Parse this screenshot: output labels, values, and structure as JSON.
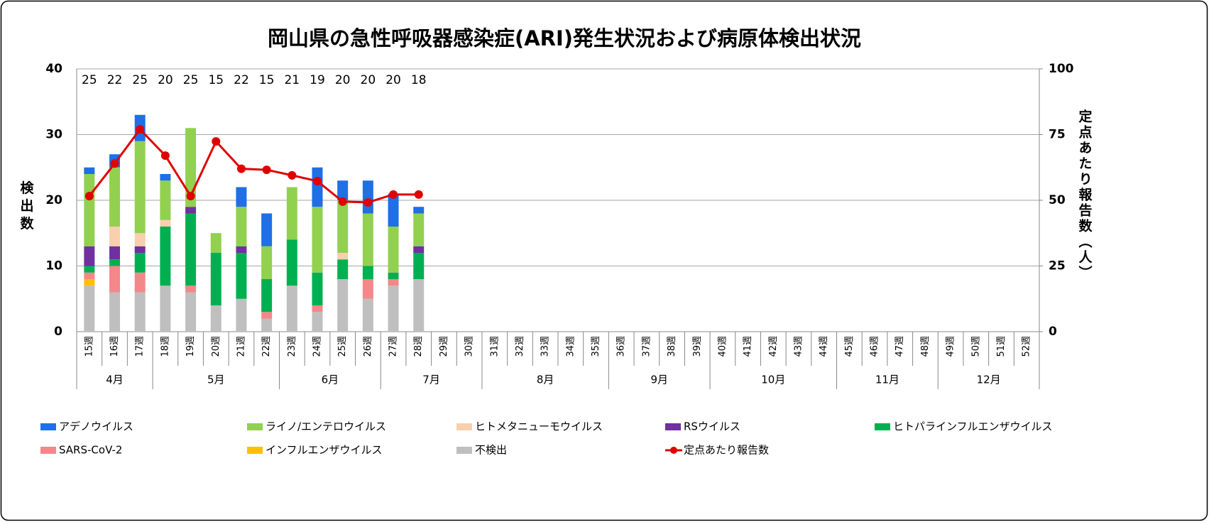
{
  "chart_data": {
    "type": "bar",
    "stacked": true,
    "title": "岡山県の急性呼吸器感染症(ARI)発生状況および病原体検出状況",
    "y_label": "検出数",
    "y2_label": "定点あたり報告数（人）",
    "categories": [
      "15週",
      "16週",
      "17週",
      "18週",
      "19週",
      "20週",
      "21週",
      "22週",
      "23週",
      "24週",
      "25週",
      "26週",
      "27週",
      "28週",
      "29週",
      "30週",
      "31週",
      "32週",
      "33週",
      "34週",
      "35週",
      "36週",
      "37週",
      "38週",
      "39週",
      "40週",
      "41週",
      "42週",
      "43週",
      "44週",
      "45週",
      "46週",
      "47週",
      "48週",
      "49週",
      "50週",
      "51週",
      "52週"
    ],
    "month_groups": [
      {
        "label": "4月",
        "span": 3
      },
      {
        "label": "5月",
        "span": 5
      },
      {
        "label": "6月",
        "span": 4
      },
      {
        "label": "7月",
        "span": 4
      },
      {
        "label": "8月",
        "span": 5
      },
      {
        "label": "9月",
        "span": 4
      },
      {
        "label": "10月",
        "span": 5
      },
      {
        "label": "11月",
        "span": 4
      },
      {
        "label": "12月",
        "span": 4
      }
    ],
    "top_labels": [
      25,
      22,
      25,
      20,
      25,
      15,
      22,
      15,
      21,
      19,
      20,
      20,
      20,
      18
    ],
    "series": [
      {
        "name": "アデノウイルス",
        "color": "#1f6fe6",
        "values": [
          1,
          2,
          4,
          1,
          0,
          0,
          3,
          5,
          0,
          6,
          3,
          5,
          5,
          1,
          null,
          null,
          null,
          null,
          null,
          null,
          null,
          null,
          null,
          null,
          null,
          null,
          null,
          null,
          null,
          null,
          null,
          null,
          null,
          null,
          null,
          null,
          null,
          null
        ]
      },
      {
        "name": "ライノ/エンテロウイルス",
        "color": "#92d050",
        "values": [
          11,
          9,
          14,
          6,
          12,
          3,
          6,
          5,
          8,
          10,
          8,
          8,
          7,
          5,
          null,
          null,
          null,
          null,
          null,
          null,
          null,
          null,
          null,
          null,
          null,
          null,
          null,
          null,
          null,
          null,
          null,
          null,
          null,
          null,
          null,
          null,
          null,
          null
        ]
      },
      {
        "name": "ヒトメタニューモウイルス",
        "color": "#f9cfae",
        "values": [
          0,
          3,
          2,
          1,
          0,
          0,
          0,
          0,
          0,
          0,
          1,
          0,
          0,
          0,
          null,
          null,
          null,
          null,
          null,
          null,
          null,
          null,
          null,
          null,
          null,
          null,
          null,
          null,
          null,
          null,
          null,
          null,
          null,
          null,
          null,
          null,
          null,
          null
        ]
      },
      {
        "name": "RSウイルス",
        "color": "#7030a0",
        "values": [
          3,
          2,
          1,
          0,
          1,
          0,
          1,
          0,
          0,
          0,
          0,
          0,
          0,
          1,
          null,
          null,
          null,
          null,
          null,
          null,
          null,
          null,
          null,
          null,
          null,
          null,
          null,
          null,
          null,
          null,
          null,
          null,
          null,
          null,
          null,
          null,
          null,
          null
        ]
      },
      {
        "name": "ヒトパラインフルエンザウイルス",
        "color": "#00b050",
        "values": [
          1,
          1,
          3,
          9,
          11,
          8,
          7,
          5,
          7,
          5,
          3,
          2,
          1,
          4,
          null,
          null,
          null,
          null,
          null,
          null,
          null,
          null,
          null,
          null,
          null,
          null,
          null,
          null,
          null,
          null,
          null,
          null,
          null,
          null,
          null,
          null,
          null,
          null
        ]
      },
      {
        "name": "SARS-CoV-2",
        "color": "#f4878a",
        "values": [
          1,
          4,
          3,
          0,
          1,
          0,
          0,
          1,
          0,
          1,
          0,
          3,
          1,
          0,
          null,
          null,
          null,
          null,
          null,
          null,
          null,
          null,
          null,
          null,
          null,
          null,
          null,
          null,
          null,
          null,
          null,
          null,
          null,
          null,
          null,
          null,
          null,
          null
        ]
      },
      {
        "name": "インフルエンザウイルス",
        "color": "#ffc000",
        "values": [
          1,
          0,
          0,
          0,
          0,
          0,
          0,
          0,
          0,
          0,
          0,
          0,
          0,
          0,
          null,
          null,
          null,
          null,
          null,
          null,
          null,
          null,
          null,
          null,
          null,
          null,
          null,
          null,
          null,
          null,
          null,
          null,
          null,
          null,
          null,
          null,
          null,
          null
        ]
      },
      {
        "name": "不検出",
        "color": "#bfbfbf",
        "values": [
          7,
          6,
          6,
          7,
          6,
          4,
          5,
          2,
          7,
          3,
          8,
          5,
          7,
          8,
          null,
          null,
          null,
          null,
          null,
          null,
          null,
          null,
          null,
          null,
          null,
          null,
          null,
          null,
          null,
          null,
          null,
          null,
          null,
          null,
          null,
          null,
          null,
          null
        ]
      },
      {
        "name": "定点あたり報告数",
        "type": "line",
        "axis": "y2",
        "color": "#e00000",
        "values": [
          51.6,
          64,
          77,
          67,
          51.6,
          72.4,
          62,
          61.6,
          59.5,
          57.3,
          49.5,
          49.2,
          52.2,
          52.2,
          null,
          null,
          null,
          null,
          null,
          null,
          null,
          null,
          null,
          null,
          null,
          null,
          null,
          null,
          null,
          null,
          null,
          null,
          null,
          null,
          null,
          null,
          null,
          null
        ]
      }
    ],
    "ylim": [
      0,
      40
    ],
    "yticks": [
      0,
      10,
      20,
      30,
      40
    ],
    "y2lim": [
      0,
      100
    ],
    "y2ticks": [
      0,
      25,
      50,
      75,
      100
    ],
    "grid": true
  }
}
